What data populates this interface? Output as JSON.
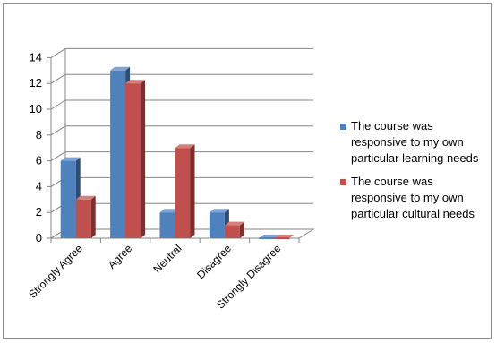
{
  "chart_data": {
    "type": "bar",
    "categories": [
      "Strongly Agree",
      "Agree",
      "Neutral",
      "Disagree",
      "Strongly Disagree"
    ],
    "series": [
      {
        "name": "The course was responsive to my own particular learning needs",
        "legend_lines": [
          "The course was",
          "responsive to my own",
          "particular learning needs"
        ],
        "values": [
          6,
          13,
          2,
          2,
          0
        ],
        "color": "#4f81bd",
        "dark": "#2c4d75",
        "top": "#7ea3d4"
      },
      {
        "name": "The course was responsive to my own particular cultural needs",
        "legend_lines": [
          "The course was",
          "responsive to my own",
          "particular cultural needs"
        ],
        "values": [
          3,
          12,
          7,
          1,
          0
        ],
        "color": "#c0504d",
        "dark": "#7d2f2d",
        "top": "#d77d7a"
      }
    ],
    "ylim": [
      0,
      14
    ],
    "yticks": [
      0,
      2,
      4,
      6,
      8,
      10,
      12,
      14
    ],
    "grid": true,
    "three_d": true,
    "legend_position": "right"
  }
}
